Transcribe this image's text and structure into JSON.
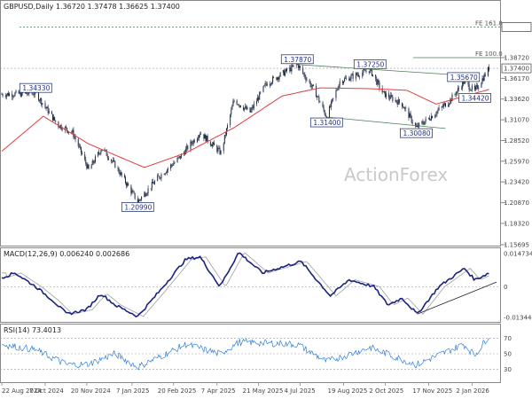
{
  "chart_data": [
    {
      "type": "candlestick",
      "title": "GBPUSD,Daily  1.36720 1.37478 1.36625 1.37400",
      "watermark": "ActionForex",
      "y_tick_labels": [
        "1.42480",
        "1.38720",
        "1.36170",
        "1.33620",
        "1.31070",
        "1.28520",
        "1.25970",
        "1.23420",
        "1.20870",
        "1.18320",
        "1.15695"
      ],
      "ylim": [
        1.15695,
        1.445
      ],
      "current_price_label": "1.37400",
      "x_tick_labels": [
        "22 Aug 2024",
        "7 Oct 2024",
        "20 Nov 2024",
        "7 Jan 2025",
        "20 Feb 2025",
        "7 Apr 2025",
        "21 May 2025",
        "4 Jul 2025",
        "19 Aug 2025",
        "2 Oct 2025",
        "17 Nov 2025",
        "2 Jan 2026"
      ],
      "price_anchors": [
        {
          "date": "2024-08-22",
          "close": 1.342
        },
        {
          "date": "2024-09-27",
          "close": 1.3433
        },
        {
          "date": "2024-10-20",
          "close": 1.305
        },
        {
          "date": "2024-11-05",
          "close": 1.295
        },
        {
          "date": "2024-11-22",
          "close": 1.249
        },
        {
          "date": "2024-12-06",
          "close": 1.276
        },
        {
          "date": "2024-12-20",
          "close": 1.255
        },
        {
          "date": "2025-01-13",
          "close": 1.2099
        },
        {
          "date": "2025-02-04",
          "close": 1.24
        },
        {
          "date": "2025-02-27",
          "close": 1.265
        },
        {
          "date": "2025-03-20",
          "close": 1.295
        },
        {
          "date": "2025-04-11",
          "close": 1.27
        },
        {
          "date": "2025-04-25",
          "close": 1.335
        },
        {
          "date": "2025-05-12",
          "close": 1.32
        },
        {
          "date": "2025-05-29",
          "close": 1.355
        },
        {
          "date": "2025-07-01",
          "close": 1.3787
        },
        {
          "date": "2025-07-20",
          "close": 1.345
        },
        {
          "date": "2025-08-01",
          "close": 1.314
        },
        {
          "date": "2025-08-15",
          "close": 1.358
        },
        {
          "date": "2025-09-16",
          "close": 1.3725
        },
        {
          "date": "2025-09-30",
          "close": 1.343
        },
        {
          "date": "2025-10-20",
          "close": 1.33
        },
        {
          "date": "2025-11-04",
          "close": 1.3008
        },
        {
          "date": "2025-11-20",
          "close": 1.315
        },
        {
          "date": "2025-12-10",
          "close": 1.335
        },
        {
          "date": "2025-12-24",
          "close": 1.3567
        },
        {
          "date": "2026-01-05",
          "close": 1.346
        },
        {
          "date": "2026-01-20",
          "close": 1.374
        }
      ],
      "sma_anchors": [
        {
          "date": "2024-08-22",
          "value": 1.272
        },
        {
          "date": "2024-10-05",
          "value": 1.315
        },
        {
          "date": "2024-11-22",
          "value": 1.281
        },
        {
          "date": "2025-01-20",
          "value": 1.252
        },
        {
          "date": "2025-03-05",
          "value": 1.27
        },
        {
          "date": "2025-04-25",
          "value": 1.301
        },
        {
          "date": "2025-06-15",
          "value": 1.34
        },
        {
          "date": "2025-07-25",
          "value": 1.35
        },
        {
          "date": "2025-09-15",
          "value": 1.349
        },
        {
          "date": "2025-10-25",
          "value": 1.347
        },
        {
          "date": "2025-11-25",
          "value": 1.33
        },
        {
          "date": "2026-01-20",
          "value": 1.348
        }
      ],
      "annotations": [
        {
          "text": "1.34330",
          "date": "2024-09-27",
          "value": 1.3433
        },
        {
          "text": "1.20990",
          "date": "2025-01-13",
          "value": 1.2099
        },
        {
          "text": "1.37870",
          "date": "2025-07-01",
          "value": 1.3787
        },
        {
          "text": "1.31400",
          "date": "2025-08-01",
          "value": 1.314
        },
        {
          "text": "1.37250",
          "date": "2025-09-16",
          "value": 1.3725
        },
        {
          "text": "1.30080",
          "date": "2025-11-04",
          "value": 1.3008
        },
        {
          "text": "1.35670",
          "date": "2025-12-24",
          "value": 1.3567
        },
        {
          "text": "1.34420",
          "date": "2026-01-05",
          "value": 1.3442
        }
      ],
      "fib_levels": [
        {
          "label": "FE 161.8",
          "value": 1.4248
        },
        {
          "label": "FE 100.0",
          "value": 1.3872
        }
      ],
      "trend_lines": [
        {
          "from": {
            "date": "2025-07-01",
            "value": 1.3787
          },
          "to": {
            "date": "2025-12-28",
            "value": 1.365
          }
        },
        {
          "from": {
            "date": "2025-08-01",
            "value": 1.314
          },
          "to": {
            "date": "2025-12-05",
            "value": 1.3
          }
        }
      ],
      "colors": {
        "sma": "#e23c3c",
        "lines": "#4a7c59",
        "label_border": "#2c3e7a"
      }
    },
    {
      "type": "line",
      "title": "MACD(12,26,9) 0.006240 0.002686",
      "y_tick_labels": [
        "0.014734",
        "0",
        "-0.013442"
      ],
      "ylim": [
        -0.015,
        0.016
      ],
      "macd_anchors": [
        {
          "date": "2024-08-22",
          "value": 0.004
        },
        {
          "date": "2024-09-05",
          "value": 0.006
        },
        {
          "date": "2024-09-27",
          "value": 0.0
        },
        {
          "date": "2024-10-15",
          "value": -0.006
        },
        {
          "date": "2024-10-30",
          "value": -0.012
        },
        {
          "date": "2024-11-20",
          "value": -0.01
        },
        {
          "date": "2024-12-05",
          "value": -0.003
        },
        {
          "date": "2024-12-20",
          "value": -0.008
        },
        {
          "date": "2025-01-13",
          "value": -0.013
        },
        {
          "date": "2025-02-05",
          "value": -0.002
        },
        {
          "date": "2025-03-05",
          "value": 0.012
        },
        {
          "date": "2025-03-20",
          "value": 0.013
        },
        {
          "date": "2025-04-10",
          "value": 0.0
        },
        {
          "date": "2025-04-30",
          "value": 0.015
        },
        {
          "date": "2025-05-25",
          "value": 0.006
        },
        {
          "date": "2025-07-05",
          "value": 0.011
        },
        {
          "date": "2025-08-05",
          "value": -0.004
        },
        {
          "date": "2025-08-25",
          "value": 0.003
        },
        {
          "date": "2025-09-20",
          "value": 0.0
        },
        {
          "date": "2025-10-05",
          "value": -0.008
        },
        {
          "date": "2025-10-20",
          "value": -0.005
        },
        {
          "date": "2025-11-05",
          "value": -0.012
        },
        {
          "date": "2025-11-28",
          "value": 0.0
        },
        {
          "date": "2025-12-25",
          "value": 0.008
        },
        {
          "date": "2026-01-05",
          "value": 0.003
        },
        {
          "date": "2026-01-20",
          "value": 0.006
        }
      ],
      "support_line": {
        "from": {
          "date": "2025-11-05",
          "value": -0.012
        },
        "to": {
          "date": "2026-01-28",
          "value": 0.002
        }
      },
      "colors": {
        "macd": "#1a237e",
        "signal": "#9e9e9e",
        "support": "#222222"
      }
    },
    {
      "type": "line",
      "title": "RSI(14) 73.4013",
      "y_tick_labels": [
        "70",
        "50",
        "30"
      ],
      "ylim": [
        15,
        85
      ],
      "rsi_anchors": [
        {
          "date": "2024-08-22",
          "value": 62
        },
        {
          "date": "2024-09-27",
          "value": 55
        },
        {
          "date": "2024-10-30",
          "value": 36
        },
        {
          "date": "2024-11-22",
          "value": 37
        },
        {
          "date": "2024-12-20",
          "value": 50
        },
        {
          "date": "2025-01-13",
          "value": 33
        },
        {
          "date": "2025-03-05",
          "value": 62
        },
        {
          "date": "2025-04-10",
          "value": 50
        },
        {
          "date": "2025-05-01",
          "value": 65
        },
        {
          "date": "2025-07-01",
          "value": 62
        },
        {
          "date": "2025-08-01",
          "value": 40
        },
        {
          "date": "2025-09-16",
          "value": 58
        },
        {
          "date": "2025-11-04",
          "value": 36
        },
        {
          "date": "2025-12-24",
          "value": 62
        },
        {
          "date": "2026-01-05",
          "value": 48
        },
        {
          "date": "2026-01-20",
          "value": 73.4
        }
      ],
      "colors": {
        "rsi": "#2f7fd8",
        "levels": "#999999"
      }
    }
  ]
}
